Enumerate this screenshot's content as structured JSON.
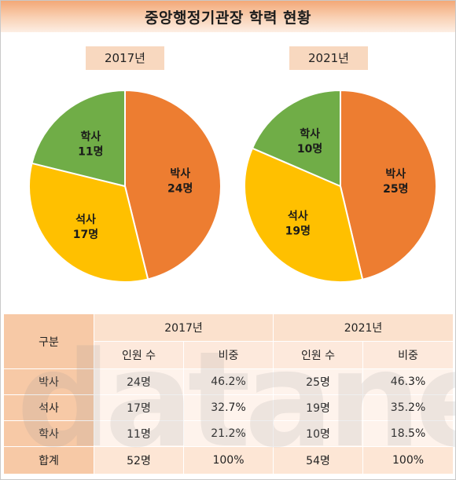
{
  "title": "중앙행정기관장 학력 현황",
  "colors": {
    "박사": "#ed7d31",
    "석사": "#ffc000",
    "학사": "#70ad47"
  },
  "chart_data": [
    {
      "type": "pie",
      "title": "2017년",
      "slices": [
        {
          "label": "박사",
          "value": 24,
          "text": "24명",
          "color": "#ed7d31"
        },
        {
          "label": "석사",
          "value": 17,
          "text": "17명",
          "color": "#ffc000"
        },
        {
          "label": "학사",
          "value": 11,
          "text": "11명",
          "color": "#70ad47"
        }
      ]
    },
    {
      "type": "pie",
      "title": "2021년",
      "slices": [
        {
          "label": "박사",
          "value": 25,
          "text": "25명",
          "color": "#ed7d31"
        },
        {
          "label": "석사",
          "value": 19,
          "text": "19명",
          "color": "#ffc000"
        },
        {
          "label": "학사",
          "value": 10,
          "text": "10명",
          "color": "#70ad47"
        }
      ]
    }
  ],
  "table": {
    "corner": "구분",
    "years": [
      "2017년",
      "2021년"
    ],
    "subheaders": [
      "인원 수",
      "비중",
      "인원 수",
      "비중"
    ],
    "rows": [
      {
        "label": "박사",
        "cells": [
          "24명",
          "46.2%",
          "25명",
          "46.3%"
        ]
      },
      {
        "label": "석사",
        "cells": [
          "17명",
          "32.7%",
          "19명",
          "35.2%"
        ]
      },
      {
        "label": "학사",
        "cells": [
          "11명",
          "21.2%",
          "10명",
          "18.5%"
        ]
      },
      {
        "label": "합계",
        "cells": [
          "52명",
          "100%",
          "54명",
          "100%"
        ]
      }
    ]
  },
  "watermark": "datanews"
}
